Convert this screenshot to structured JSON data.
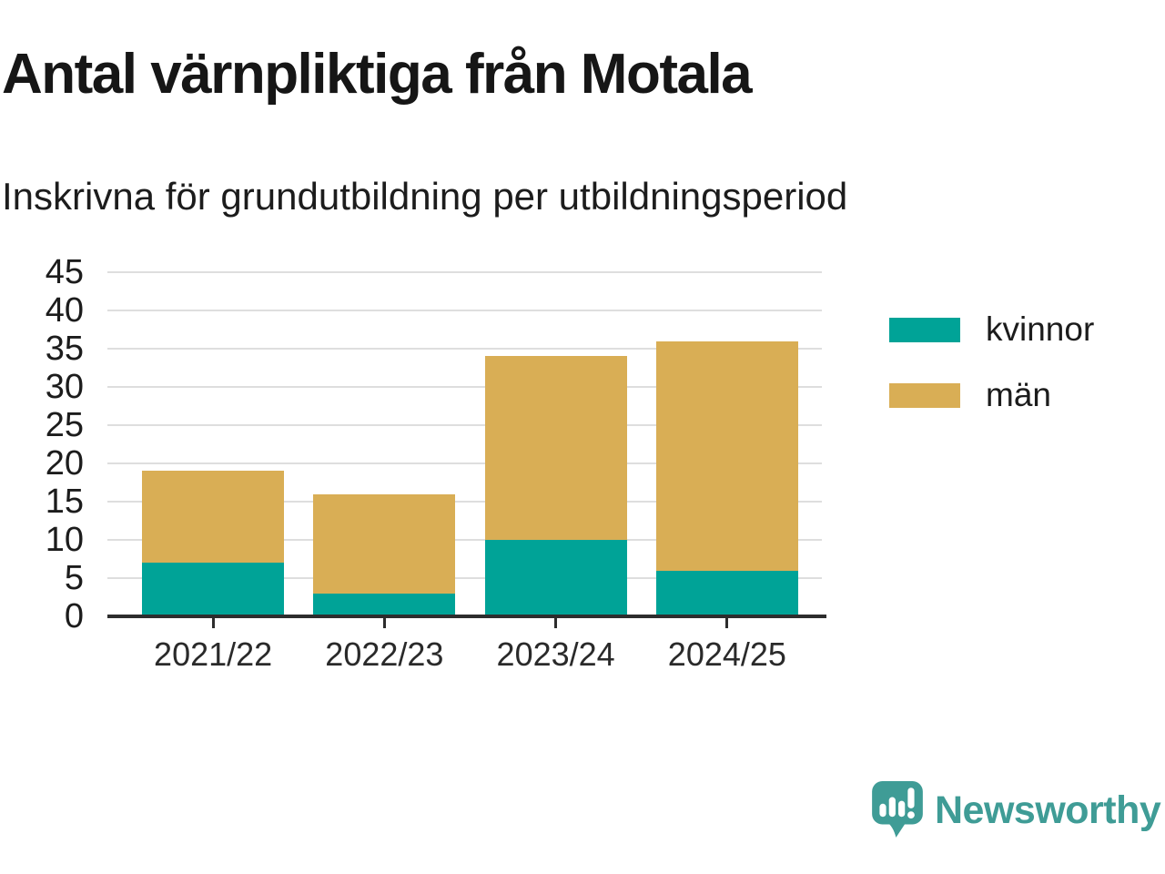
{
  "header": {
    "title": "Antal värnpliktiga från Motala",
    "subtitle": "Inskrivna för grundutbildning per utbildningsperiod"
  },
  "chart_data": {
    "type": "bar",
    "stacked": true,
    "title": "Antal värnpliktiga från Motala",
    "subtitle": "Inskrivna för grundutbildning per utbildningsperiod",
    "categories": [
      "2021/22",
      "2022/23",
      "2023/24",
      "2024/25"
    ],
    "series": [
      {
        "name": "kvinnor",
        "color": "#00a397",
        "values": [
          7,
          3,
          10,
          6
        ]
      },
      {
        "name": "män",
        "color": "#d9ae55",
        "values": [
          12,
          13,
          24,
          30
        ]
      }
    ],
    "totals": [
      19,
      16,
      34,
      36
    ],
    "xlabel": "",
    "ylabel": "",
    "ylim": [
      0,
      45
    ],
    "yticks": [
      0,
      5,
      10,
      15,
      20,
      25,
      30,
      35,
      40,
      45
    ],
    "grid": true,
    "gridline_color": "#dedede",
    "axis_color": "#2d2d2d",
    "legend_position": "right"
  },
  "brand": {
    "name": "Newsworthy",
    "color": "#3f9c96"
  }
}
